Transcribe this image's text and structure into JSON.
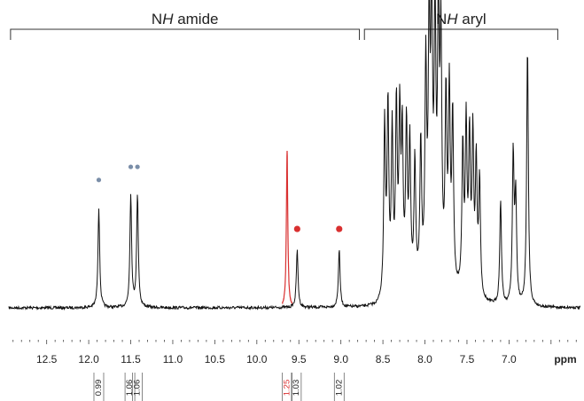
{
  "chart_data": {
    "type": "line",
    "title": "",
    "xlabel": "ppm",
    "ylabel": "",
    "x_reversed": true,
    "xlim": [
      12.95,
      6.15
    ],
    "ylim": [
      0,
      1.1
    ],
    "x_ticks": [
      "12.5",
      "12.0",
      "11.5",
      "11.0",
      "10.5",
      "10.0",
      "9.5",
      "9.0",
      "8.5",
      "8.0",
      "7.5",
      "7.0"
    ],
    "regions": [
      {
        "label_prefix": "N",
        "label_italic": "H",
        "label_suffix": " amide",
        "from_ppm": 12.93,
        "to_ppm": 8.78
      },
      {
        "label_prefix": "N",
        "label_italic": "H",
        "label_suffix": " aryl",
        "from_ppm": 8.72,
        "to_ppm": 6.42
      }
    ],
    "peaks": [
      {
        "ppm": 11.88,
        "height": 0.38,
        "color": "#111111"
      },
      {
        "ppm": 11.5,
        "height": 0.43,
        "color": "#111111"
      },
      {
        "ppm": 11.42,
        "height": 0.43,
        "color": "#111111"
      },
      {
        "ppm": 9.64,
        "height": 0.6,
        "color": "#d93030"
      },
      {
        "ppm": 9.52,
        "height": 0.22,
        "color": "#111111"
      },
      {
        "ppm": 9.02,
        "height": 0.22,
        "color": "#111111"
      }
    ],
    "aryl_multiplet": [
      {
        "ppm": 8.48,
        "height": 0.66
      },
      {
        "ppm": 8.44,
        "height": 0.72
      },
      {
        "ppm": 8.39,
        "height": 0.62
      },
      {
        "ppm": 8.34,
        "height": 0.7
      },
      {
        "ppm": 8.3,
        "height": 0.64
      },
      {
        "ppm": 8.27,
        "height": 0.58
      },
      {
        "ppm": 8.22,
        "height": 0.62
      },
      {
        "ppm": 8.18,
        "height": 0.55
      },
      {
        "ppm": 8.12,
        "height": 0.48
      },
      {
        "ppm": 8.05,
        "height": 0.54
      },
      {
        "ppm": 7.99,
        "height": 0.82
      },
      {
        "ppm": 7.95,
        "height": 0.95
      },
      {
        "ppm": 7.92,
        "height": 1.04
      },
      {
        "ppm": 7.88,
        "height": 0.99
      },
      {
        "ppm": 7.84,
        "height": 1.0
      },
      {
        "ppm": 7.81,
        "height": 0.9
      },
      {
        "ppm": 7.75,
        "height": 0.7
      },
      {
        "ppm": 7.71,
        "height": 0.73
      },
      {
        "ppm": 7.67,
        "height": 0.65
      },
      {
        "ppm": 7.55,
        "height": 0.55
      },
      {
        "ppm": 7.51,
        "height": 0.63
      },
      {
        "ppm": 7.47,
        "height": 0.58
      },
      {
        "ppm": 7.43,
        "height": 0.6
      },
      {
        "ppm": 7.39,
        "height": 0.5
      },
      {
        "ppm": 7.35,
        "height": 0.45
      },
      {
        "ppm": 7.1,
        "height": 0.4
      },
      {
        "ppm": 6.95,
        "height": 0.57
      },
      {
        "ppm": 6.92,
        "height": 0.4
      },
      {
        "ppm": 6.78,
        "height": 0.99
      }
    ],
    "markers": [
      {
        "ppm": 11.88,
        "color": "#7a8ea8",
        "size": "small"
      },
      {
        "ppm": 11.5,
        "color": "#7a8ea8",
        "size": "small"
      },
      {
        "ppm": 11.42,
        "color": "#7a8ea8",
        "size": "small"
      },
      {
        "ppm": 9.52,
        "color": "#d93030",
        "size": "large"
      },
      {
        "ppm": 9.02,
        "color": "#d93030",
        "size": "large"
      }
    ],
    "integrals": [
      {
        "ppm": 11.88,
        "label": "0.99",
        "color": "#222222"
      },
      {
        "ppm": 11.51,
        "label": "1.06",
        "color": "#222222"
      },
      {
        "ppm": 11.42,
        "label": "1.06",
        "color": "#222222"
      },
      {
        "ppm": 9.64,
        "label": "1.25",
        "color": "#d93030"
      },
      {
        "ppm": 9.53,
        "label": "1.03",
        "color": "#222222"
      },
      {
        "ppm": 9.02,
        "label": "1.02",
        "color": "#222222"
      }
    ]
  }
}
